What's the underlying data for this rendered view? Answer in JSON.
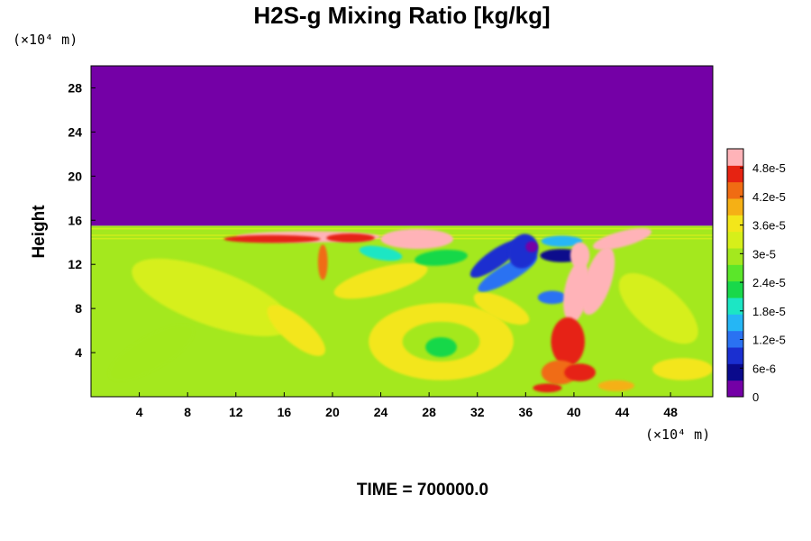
{
  "chart_data": {
    "type": "heatmap",
    "title": "H2S-g Mixing Ratio [kg/kg]",
    "ylabel": "Height",
    "x_unit": "(×10⁴ m)",
    "y_unit": "(×10⁴ m)",
    "xlim": [
      0,
      51.5
    ],
    "ylim": [
      0,
      30
    ],
    "x_ticks": [
      4,
      8,
      12,
      16,
      20,
      24,
      28,
      32,
      36,
      40,
      44,
      48
    ],
    "y_ticks": [
      4,
      8,
      12,
      16,
      20,
      24,
      28
    ],
    "colorbar": {
      "range": [
        0,
        5.2e-05
      ],
      "labels": [
        "0",
        "6e-6",
        "1.2e-5",
        "1.8e-5",
        "2.4e-5",
        "3e-5",
        "3.6e-5",
        "4.2e-5",
        "4.8e-5"
      ],
      "label_values": [
        0,
        6e-06,
        1.2e-05,
        1.8e-05,
        2.4e-05,
        3e-05,
        3.6e-05,
        4.2e-05,
        4.8e-05
      ]
    },
    "annotation": "TIME = 700000.0",
    "grid": false
  }
}
